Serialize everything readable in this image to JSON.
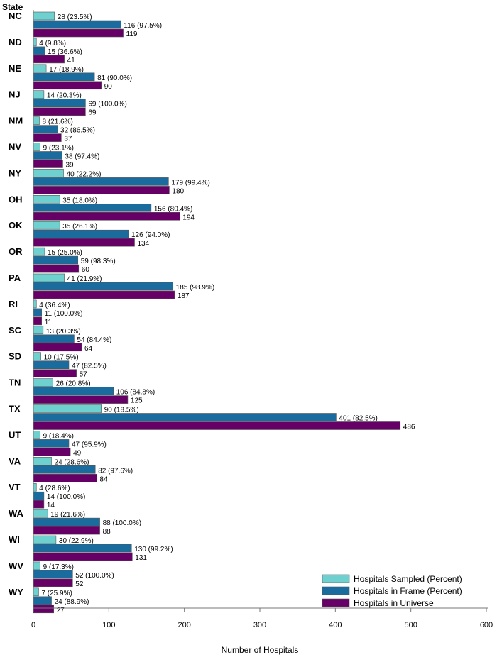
{
  "chart_data": {
    "type": "bar",
    "orientation": "horizontal",
    "ylabel": "State",
    "xlabel": "Number of Hospitals",
    "xlim": [
      0,
      600
    ],
    "xticks": [
      0,
      100,
      200,
      300,
      400,
      500,
      600
    ],
    "grid": false,
    "legend_position": "bottom-right",
    "categories": [
      "NC",
      "ND",
      "NE",
      "NJ",
      "NM",
      "NV",
      "NY",
      "OH",
      "OK",
      "OR",
      "PA",
      "RI",
      "SC",
      "SD",
      "TN",
      "TX",
      "UT",
      "VA",
      "VT",
      "WA",
      "WI",
      "WV",
      "WY"
    ],
    "series": [
      {
        "name": "Hospitals Sampled (Percent)",
        "color": "#6fd0d0",
        "values": [
          28,
          4,
          17,
          14,
          8,
          9,
          40,
          35,
          35,
          15,
          41,
          4,
          13,
          10,
          26,
          90,
          9,
          24,
          4,
          19,
          30,
          9,
          7
        ],
        "percents": [
          "23.5%",
          "9.8%",
          "18.9%",
          "20.3%",
          "21.6%",
          "23.1%",
          "22.2%",
          "18.0%",
          "26.1%",
          "25.0%",
          "21.9%",
          "36.4%",
          "20.3%",
          "17.5%",
          "20.8%",
          "18.5%",
          "18.4%",
          "28.6%",
          "28.6%",
          "21.6%",
          "22.9%",
          "17.3%",
          "25.9%"
        ]
      },
      {
        "name": "Hospitals in Frame (Percent)",
        "color": "#1b6c9e",
        "values": [
          116,
          15,
          81,
          69,
          32,
          38,
          179,
          156,
          126,
          59,
          185,
          11,
          54,
          47,
          106,
          401,
          47,
          82,
          14,
          88,
          130,
          52,
          24
        ],
        "percents": [
          "97.5%",
          "36.6%",
          "90.0%",
          "100.0%",
          "86.5%",
          "97.4%",
          "99.4%",
          "80.4%",
          "94.0%",
          "98.3%",
          "98.9%",
          "100.0%",
          "84.4%",
          "82.5%",
          "84.8%",
          "82.5%",
          "95.9%",
          "97.6%",
          "100.0%",
          "100.0%",
          "99.2%",
          "100.0%",
          "88.9%"
        ]
      },
      {
        "name": "Hospitals in Universe",
        "color": "#660066",
        "values": [
          119,
          41,
          90,
          69,
          37,
          39,
          180,
          194,
          134,
          60,
          187,
          11,
          64,
          57,
          125,
          486,
          49,
          84,
          14,
          88,
          131,
          52,
          27
        ]
      }
    ]
  }
}
